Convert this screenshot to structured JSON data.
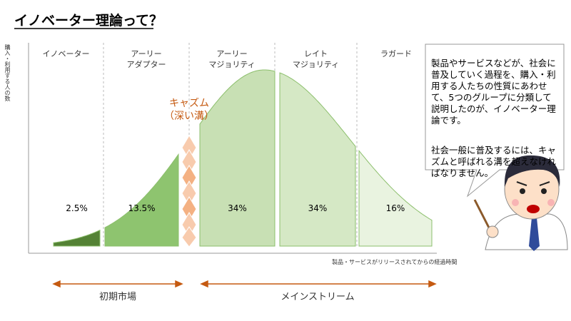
{
  "title": "イノベーター理論って？",
  "chart_data": {
    "type": "area",
    "y_label": "購入・利用する人の数",
    "x_label": "製品・サービスがリリースされてからの経過時間",
    "categories": [
      "イノベーター",
      "アーリー\nアダプター",
      "アーリー\nマジョリティ",
      "レイト\nマジョリティ",
      "ラガード"
    ],
    "values": [
      2.5,
      13.5,
      34,
      34,
      16
    ],
    "value_labels": [
      "2.5%",
      "13.5%",
      "34%",
      "34%",
      "16%"
    ],
    "colors": [
      "#548235",
      "#8ec46f",
      "#c8e0b4",
      "#d5e8c5",
      "#e9f3e0"
    ],
    "chasm_label": "キャズム\n（深い溝）",
    "phases": [
      "初期市場",
      "メインストリーム"
    ]
  },
  "note": [
    "製品やサービスなどが、社会に普及していく過程を、購入・利用する人たちの性質にあわせて、5つのグループに分類して説明したのが、イノベーター理論です。",
    "社会一般に普及するには、キャズムと呼ばれる溝を超えなければなりません。"
  ]
}
